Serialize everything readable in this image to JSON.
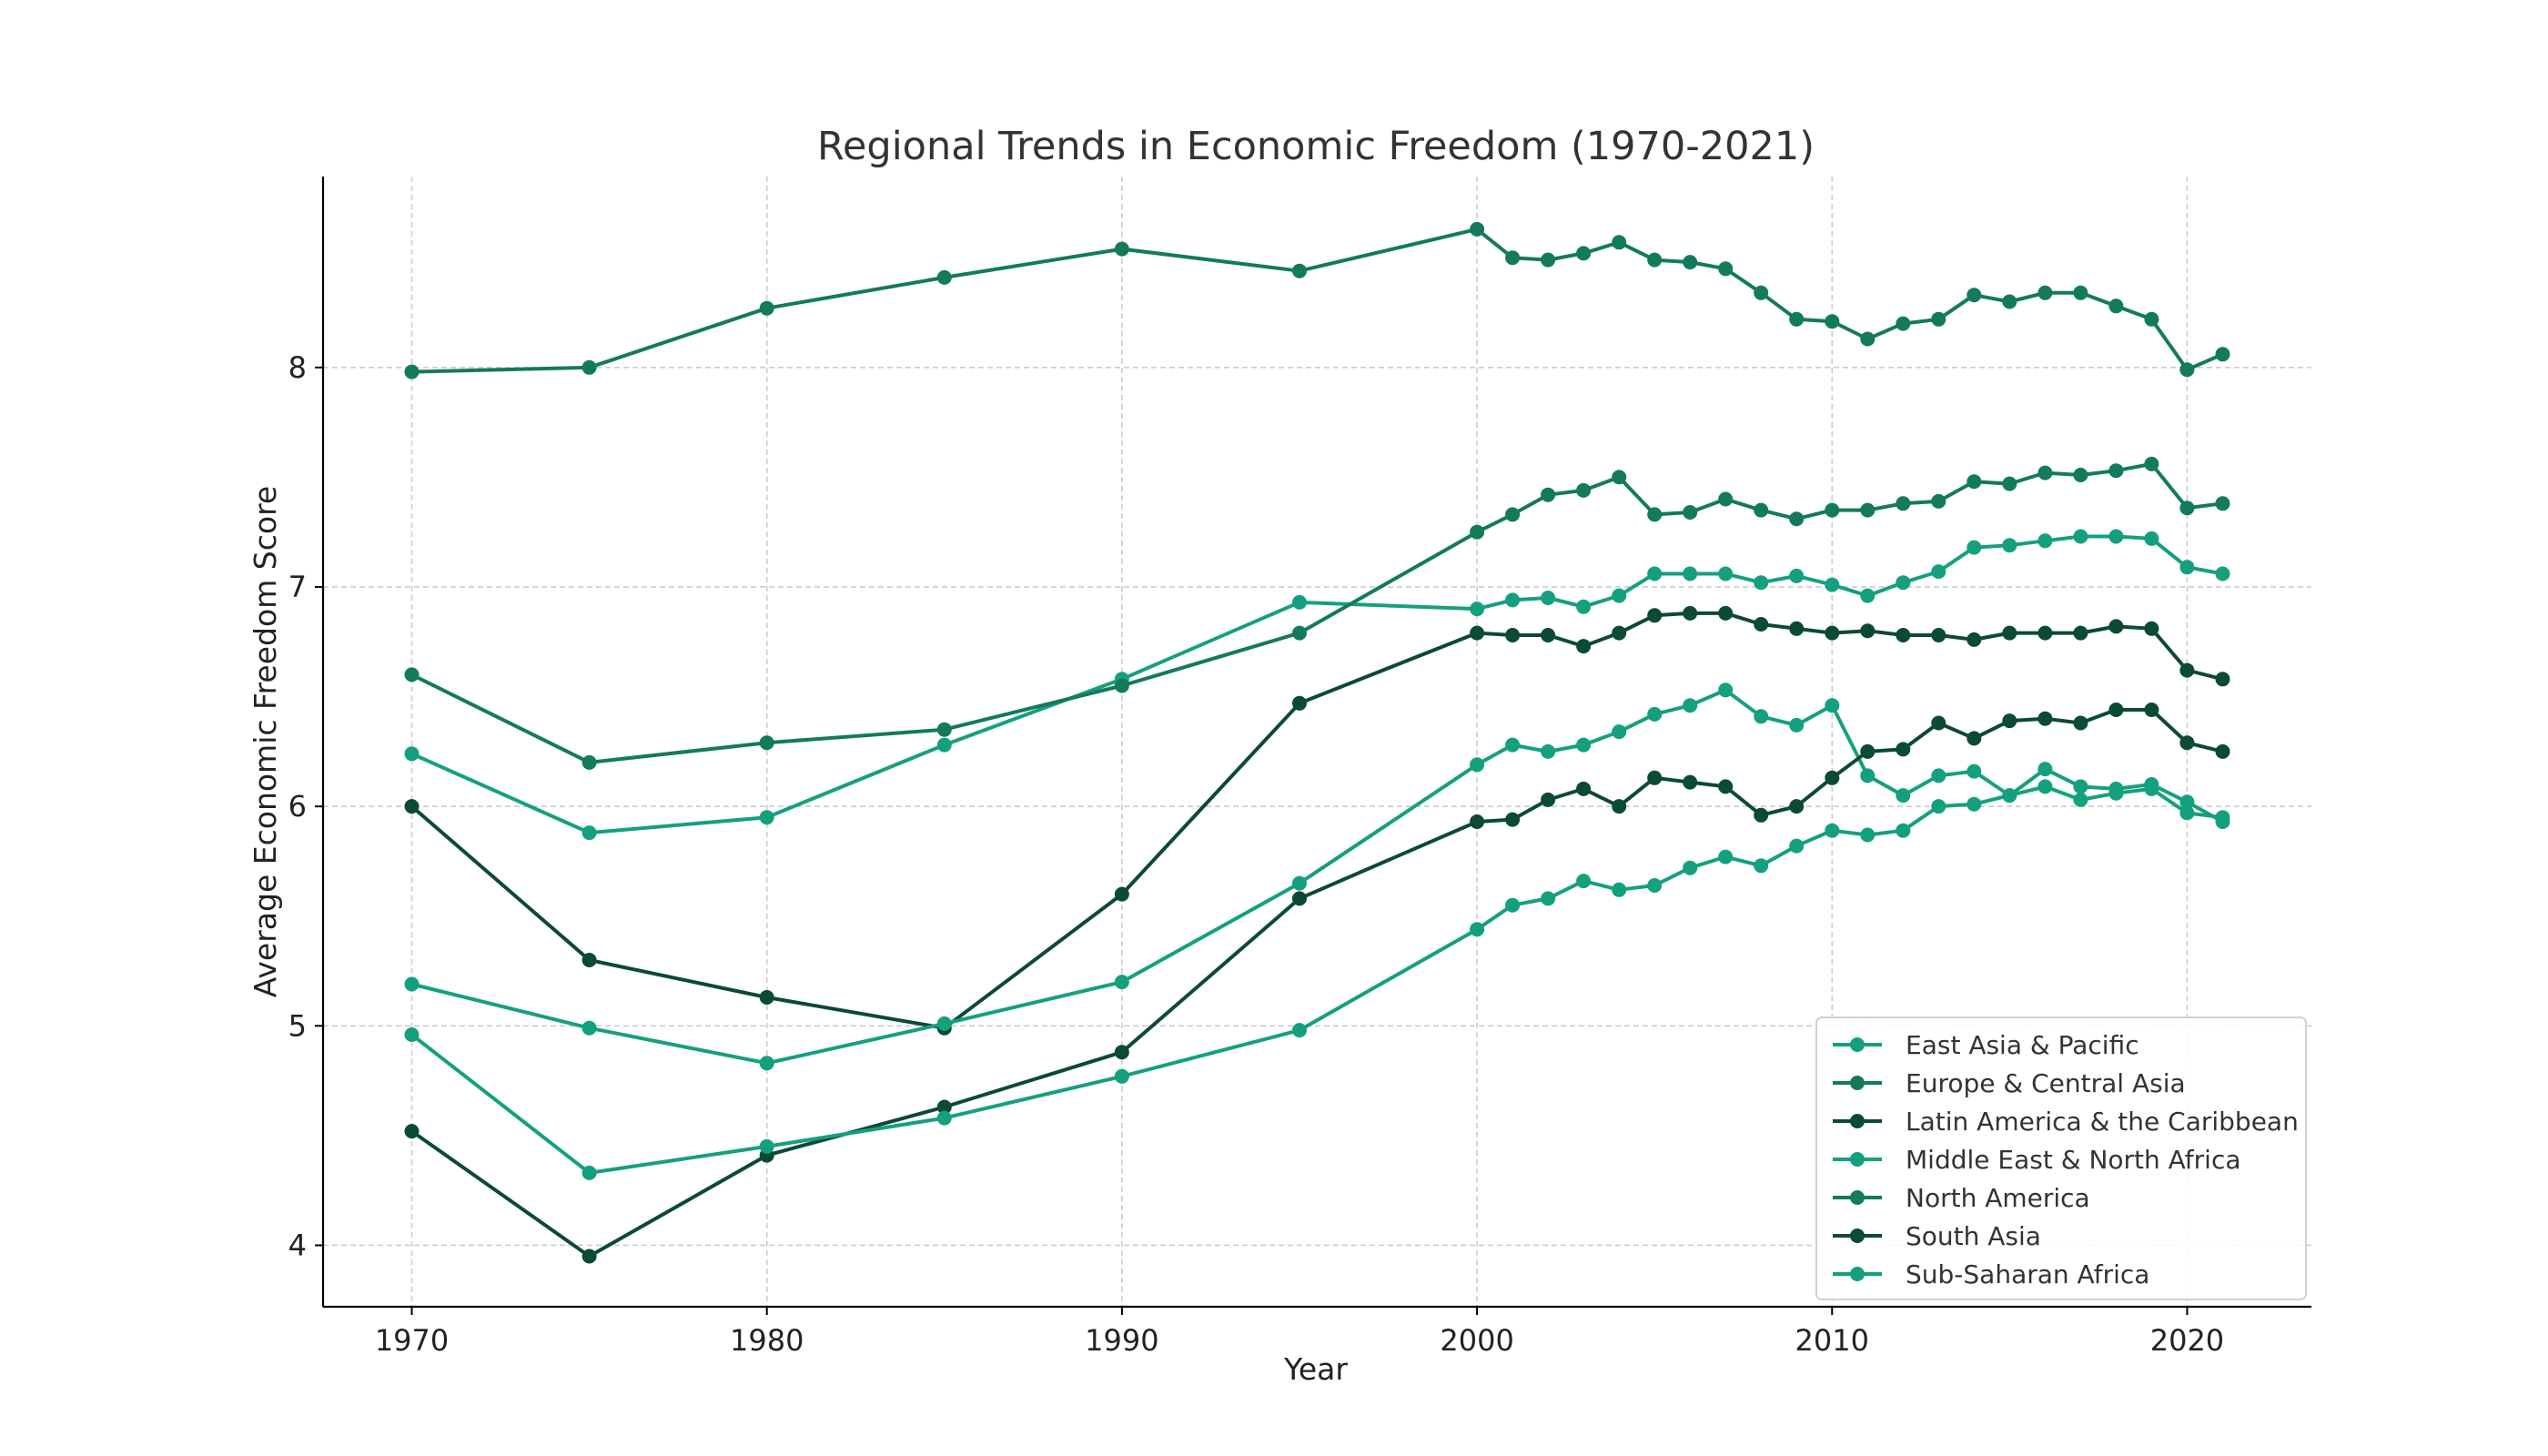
{
  "chart_data": {
    "type": "line",
    "title": "Regional Trends in Economic Freedom (1970-2021)",
    "xlabel": "Year",
    "ylabel": "Average Economic Freedom Score",
    "xlim": [
      1967.5,
      2023.5
    ],
    "ylim": [
      3.72,
      8.87
    ],
    "xticks": [
      1970,
      1980,
      1990,
      2000,
      2010,
      2020
    ],
    "yticks": [
      4,
      5,
      6,
      7,
      8
    ],
    "grid": true,
    "legend_position": "lower-right",
    "x": [
      1970,
      1975,
      1980,
      1985,
      1990,
      1995,
      2000,
      2001,
      2002,
      2003,
      2004,
      2005,
      2006,
      2007,
      2008,
      2009,
      2010,
      2011,
      2012,
      2013,
      2014,
      2015,
      2016,
      2017,
      2018,
      2019,
      2020,
      2021
    ],
    "series": [
      {
        "name": "East Asia & Pacific",
        "color": "#14a07e",
        "values": [
          6.24,
          5.88,
          5.95,
          6.28,
          6.58,
          6.93,
          6.9,
          6.94,
          6.95,
          6.91,
          6.96,
          7.06,
          7.06,
          7.06,
          7.02,
          7.05,
          7.01,
          6.96,
          7.02,
          7.07,
          7.18,
          7.19,
          7.21,
          7.23,
          7.23,
          7.22,
          7.09,
          7.06
        ]
      },
      {
        "name": "Europe & Central Asia",
        "color": "#137a5c",
        "values": [
          6.6,
          6.2,
          6.29,
          6.35,
          6.55,
          6.79,
          7.25,
          7.33,
          7.42,
          7.44,
          7.5,
          7.33,
          7.34,
          7.4,
          7.35,
          7.31,
          7.35,
          7.35,
          7.38,
          7.39,
          7.48,
          7.47,
          7.52,
          7.51,
          7.53,
          7.56,
          7.36,
          7.38
        ]
      },
      {
        "name": "Latin America & the Caribbean",
        "color": "#0b4a35",
        "values": [
          6.0,
          5.3,
          5.13,
          4.99,
          5.6,
          6.47,
          6.79,
          6.78,
          6.78,
          6.73,
          6.79,
          6.87,
          6.88,
          6.88,
          6.83,
          6.81,
          6.79,
          6.8,
          6.78,
          6.78,
          6.76,
          6.79,
          6.79,
          6.79,
          6.82,
          6.81,
          6.62,
          6.58
        ]
      },
      {
        "name": "Middle East & North Africa",
        "color": "#14a07e",
        "values": [
          5.19,
          4.99,
          4.83,
          5.01,
          5.2,
          5.65,
          6.19,
          6.28,
          6.25,
          6.28,
          6.34,
          6.42,
          6.46,
          6.53,
          6.41,
          6.37,
          6.46,
          6.14,
          6.05,
          6.14,
          6.16,
          6.05,
          6.17,
          6.09,
          6.08,
          6.1,
          6.02,
          5.93
        ]
      },
      {
        "name": "North America",
        "color": "#137a5c",
        "values": [
          7.98,
          8.0,
          8.27,
          8.41,
          8.54,
          8.44,
          8.63,
          8.5,
          8.49,
          8.52,
          8.57,
          8.49,
          8.48,
          8.45,
          8.34,
          8.22,
          8.21,
          8.13,
          8.2,
          8.22,
          8.33,
          8.3,
          8.34,
          8.34,
          8.28,
          8.22,
          7.99,
          8.06
        ]
      },
      {
        "name": "South Asia",
        "color": "#0b4a35",
        "values": [
          4.52,
          3.95,
          4.41,
          4.63,
          4.88,
          5.58,
          5.93,
          5.94,
          6.03,
          6.08,
          6.0,
          6.13,
          6.11,
          6.09,
          5.96,
          6.0,
          6.13,
          6.25,
          6.26,
          6.38,
          6.31,
          6.39,
          6.4,
          6.38,
          6.44,
          6.44,
          6.29,
          6.25
        ]
      },
      {
        "name": "Sub-Saharan Africa",
        "color": "#14a07e",
        "values": [
          4.96,
          4.33,
          4.45,
          4.58,
          4.77,
          4.98,
          5.44,
          5.55,
          5.58,
          5.66,
          5.62,
          5.64,
          5.72,
          5.77,
          5.73,
          5.82,
          5.89,
          5.87,
          5.89,
          6.0,
          6.01,
          6.05,
          6.09,
          6.03,
          6.06,
          6.08,
          5.97,
          5.95
        ]
      }
    ]
  }
}
